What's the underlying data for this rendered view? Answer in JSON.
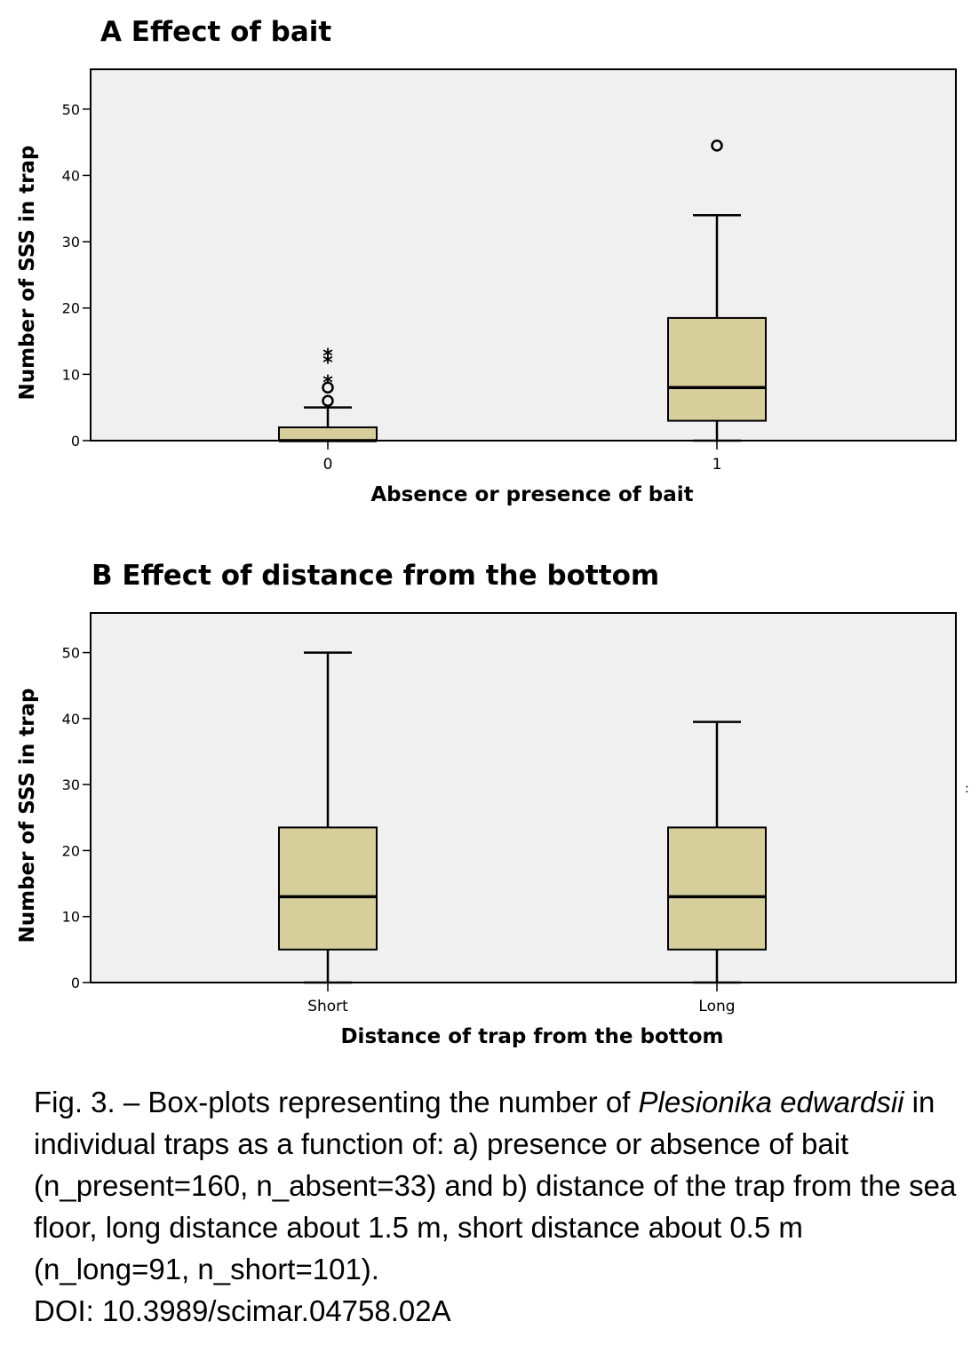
{
  "panels": [
    {
      "title": "A Effect of bait",
      "chart_data": {
        "type": "box",
        "title": "A Effect of bait",
        "xlabel": "Absence or presence of bait",
        "ylabel": "Number of SSS in trap",
        "categories": [
          "0",
          "1"
        ],
        "ylim": [
          0,
          56
        ],
        "yticks": [
          0,
          10,
          20,
          30,
          40,
          50
        ],
        "boxes": [
          {
            "category": "0",
            "whisker_low": 0,
            "q1": 0,
            "median": 0,
            "q3": 2,
            "whisker_high": 5,
            "outliers": [
              6,
              8
            ],
            "extremes": [
              9,
              12,
              13
            ]
          },
          {
            "category": "1",
            "whisker_low": 0,
            "q1": 3,
            "median": 8,
            "q3": 18.5,
            "whisker_high": 34,
            "outliers": [
              44.5
            ],
            "extremes": []
          }
        ],
        "box_color": "#d6cf9c",
        "background": "#f0f0f0",
        "grid": false
      }
    },
    {
      "title": "B Effect of distance from the bottom",
      "chart_data": {
        "type": "box",
        "title": "B Effect of distance from the bottom",
        "xlabel": "Distance of trap from the bottom",
        "ylabel": "Number of SSS in trap",
        "categories": [
          "Short",
          "Long"
        ],
        "ylim": [
          0,
          56
        ],
        "yticks": [
          0,
          10,
          20,
          30,
          40,
          50
        ],
        "boxes": [
          {
            "category": "Short",
            "whisker_low": 0,
            "q1": 5,
            "median": 13,
            "q3": 23.5,
            "whisker_high": 50,
            "outliers": [],
            "extremes": []
          },
          {
            "category": "Long",
            "whisker_low": 0,
            "q1": 5,
            "median": 13,
            "q3": 23.5,
            "whisker_high": 39.5,
            "outliers": [],
            "extremes": []
          }
        ],
        "box_color": "#d6cf9c",
        "background": "#f0f0f0",
        "grid": false
      }
    }
  ],
  "caption": {
    "prefix": "Fig. 3. – Box-plots representing the number of ",
    "species": "Plesionika edwardsii",
    "suffix": " in individual traps as a function of: a) presence or absence of bait (n_present=160, n_absent=33) and b) distance of the trap from the sea floor, long distance about 1.5 m, short distance about 0.5 m (n_long=91, n_short=101).",
    "doi": "DOI: 10.3989/scimar.04758.02A"
  },
  "stray_mark": ":"
}
